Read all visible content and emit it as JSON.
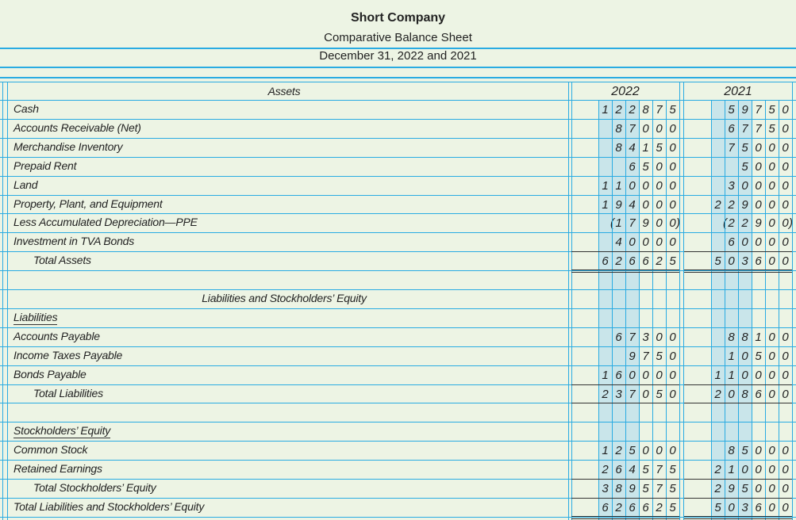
{
  "header": {
    "company": "Short Company",
    "document": "Comparative Balance Sheet",
    "date": "December 31, 2022 and 2021"
  },
  "columns": {
    "section_label": "Assets",
    "year_1": "2022",
    "year_2": "2021"
  },
  "rows": [
    {
      "label": "Cash",
      "style": "normal",
      "y2022": "122875",
      "y2021": "59750"
    },
    {
      "label": "Accounts Receivable (Net)",
      "style": "normal",
      "y2022": "87000",
      "y2021": "67750"
    },
    {
      "label": "Merchandise Inventory",
      "style": "normal",
      "y2022": "84150",
      "y2021": "75000"
    },
    {
      "label": "Prepaid Rent",
      "style": "normal",
      "y2022": "6500",
      "y2021": "5000"
    },
    {
      "label": "Land",
      "style": "normal",
      "y2022": "110000",
      "y2021": "30000"
    },
    {
      "label": "Property, Plant, and Equipment",
      "style": "normal",
      "y2022": "194000",
      "y2021": "229000"
    },
    {
      "label": "Less Accumulated Depreciation—PPE",
      "style": "normal",
      "y2022": "(17900)",
      "y2021": "(22900)"
    },
    {
      "label": "Investment in TVA Bonds",
      "style": "normal",
      "y2022": "40000",
      "y2021": "60000"
    },
    {
      "label": "Total Assets",
      "style": "indent",
      "y2022": "626625",
      "y2021": "503600"
    },
    {
      "label": "",
      "style": "blank",
      "y2022": "",
      "y2021": ""
    },
    {
      "label": "Liabilities and Stockholders’ Equity",
      "style": "center",
      "y2022": "",
      "y2021": ""
    },
    {
      "label": "Liabilities",
      "style": "underlined",
      "y2022": "",
      "y2021": ""
    },
    {
      "label": "Accounts Payable",
      "style": "normal",
      "y2022": "67300",
      "y2021": "88100"
    },
    {
      "label": "Income Taxes Payable",
      "style": "normal",
      "y2022": "9750",
      "y2021": "10500"
    },
    {
      "label": "Bonds Payable",
      "style": "normal",
      "y2022": "160000",
      "y2021": "110000"
    },
    {
      "label": "Total Liabilities",
      "style": "indent",
      "y2022": "237050",
      "y2021": "208600"
    },
    {
      "label": "",
      "style": "blank",
      "y2022": "",
      "y2021": ""
    },
    {
      "label": "Stockholders’ Equity",
      "style": "underlined",
      "y2022": "",
      "y2021": ""
    },
    {
      "label": "Common Stock",
      "style": "normal",
      "y2022": "125000",
      "y2021": "85000"
    },
    {
      "label": "Retained Earnings",
      "style": "normal",
      "y2022": "264575",
      "y2021": "210000"
    },
    {
      "label": "Total Stockholders’ Equity",
      "style": "indent",
      "y2022": "389575",
      "y2021": "295000"
    },
    {
      "label": "Total Liabilities and Stockholders’ Equity",
      "style": "normal",
      "y2022": "626625",
      "y2021": "503600"
    }
  ],
  "colors": {
    "background": "#edf4e4",
    "grid_line": "#29abe2",
    "shade": "#c9e5ea",
    "text": "#222222"
  }
}
